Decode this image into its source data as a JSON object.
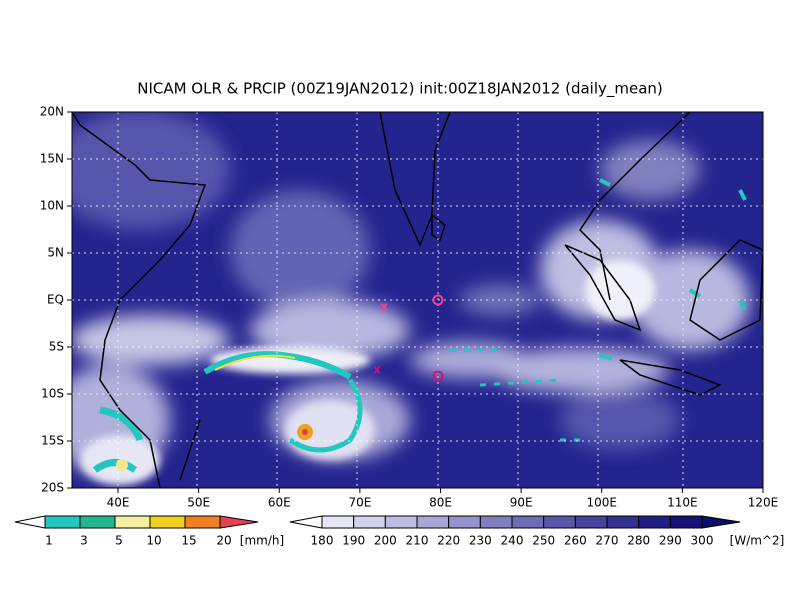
{
  "title": "NICAM OLR & PRCIP (00Z19JAN2012) init:00Z18JAN2012 (daily_mean)",
  "map": {
    "lat_labels": [
      "20N",
      "15N",
      "10N",
      "5N",
      "EQ",
      "5S",
      "10S",
      "15S",
      "20S"
    ],
    "lon_labels": [
      "40E",
      "50E",
      "60E",
      "70E",
      "80E",
      "90E",
      "100E",
      "110E",
      "120E"
    ]
  },
  "precip_colorbar": {
    "labels": [
      "1",
      "3",
      "5",
      "10",
      "15",
      "20"
    ],
    "unit": "[mm/h]"
  },
  "olr_colorbar": {
    "labels": [
      "180",
      "190",
      "200",
      "210",
      "220",
      "230",
      "240",
      "250",
      "260",
      "270",
      "280",
      "290",
      "300"
    ],
    "unit": "[W/m^2]"
  }
}
